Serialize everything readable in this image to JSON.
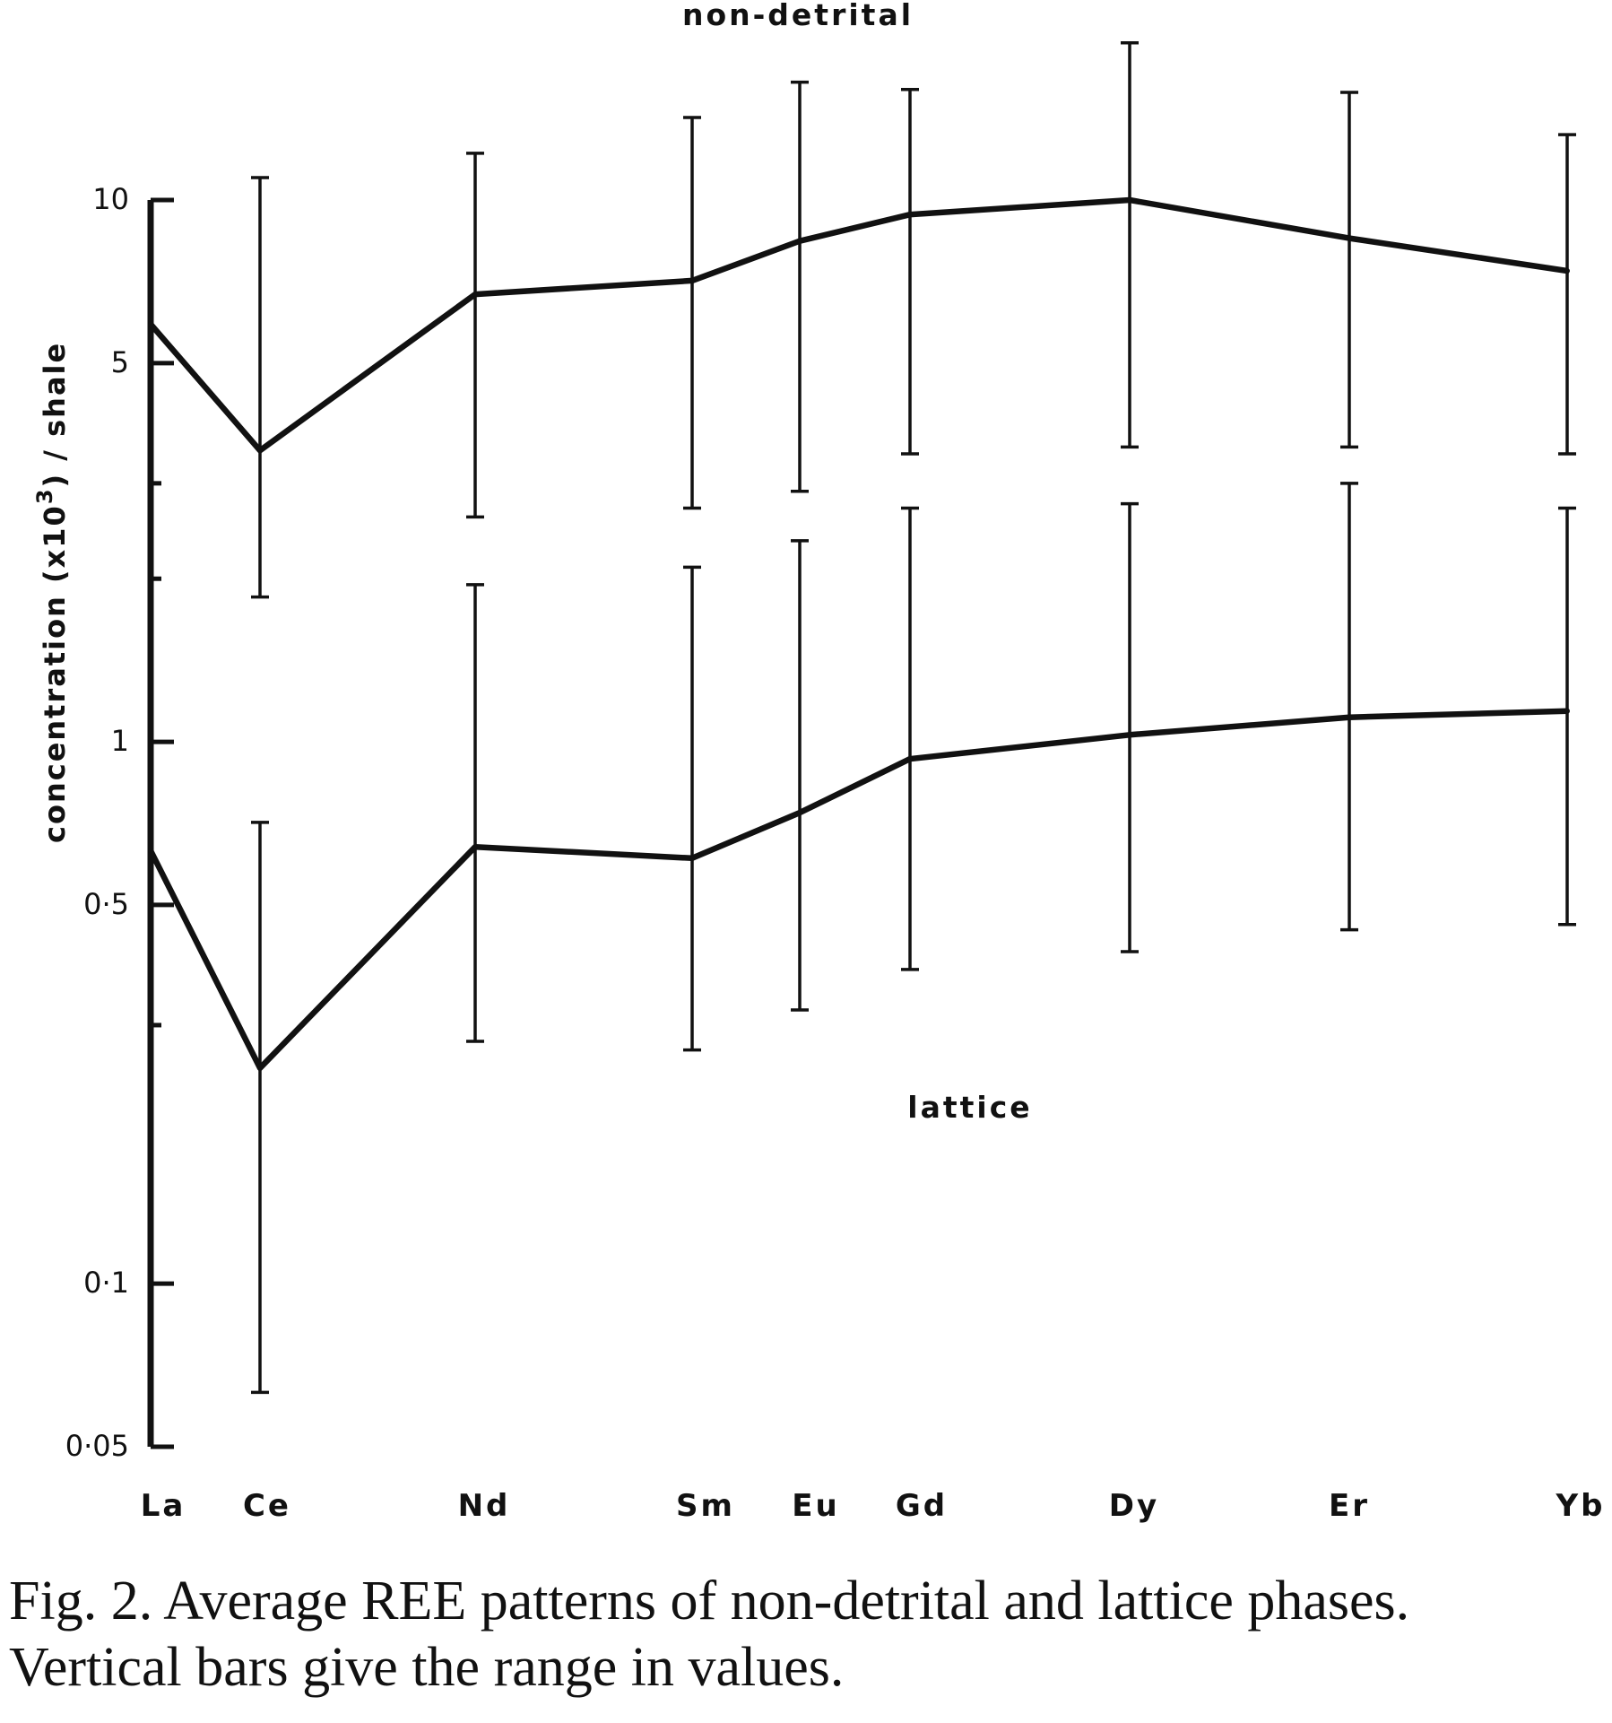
{
  "chart_data": {
    "type": "line",
    "title": "",
    "ylabel_main": "concentration (x10",
    "ylabel_sup": "3",
    "ylabel_tail": ") / shale",
    "xlabel": "",
    "yscale": "log",
    "ylim": [
      0.05,
      10
    ],
    "y_ticks_labeled": [
      {
        "value": 10,
        "label": "10"
      },
      {
        "value": 5,
        "label": "5"
      },
      {
        "value": 1,
        "label": "1"
      },
      {
        "value": 0.5,
        "label": "0·5"
      },
      {
        "value": 0.1,
        "label": "0·1"
      },
      {
        "value": 0.05,
        "label": "0·05"
      }
    ],
    "y_ticks_minor": [
      3,
      2,
      0.3
    ],
    "categories": [
      "La",
      "Ce",
      "Nd",
      "Sm",
      "Eu",
      "Gd",
      "Dy",
      "Er",
      "Yb"
    ],
    "series": [
      {
        "name": "non-detrital",
        "values": [
          5.9,
          3.45,
          6.7,
          7.1,
          8.4,
          9.4,
          10.0,
          8.5,
          7.4
        ],
        "range_low": [
          null,
          1.85,
          2.6,
          2.7,
          2.9,
          3.4,
          3.5,
          3.5,
          3.4
        ],
        "range_high": [
          null,
          11.0,
          12.2,
          14.2,
          16.5,
          16.0,
          19.5,
          15.8,
          13.2
        ]
      },
      {
        "name": "lattice",
        "values": [
          0.63,
          0.25,
          0.64,
          0.61,
          0.74,
          0.93,
          1.03,
          1.11,
          1.14
        ],
        "range_low": [
          null,
          0.063,
          0.28,
          0.27,
          0.32,
          0.38,
          0.41,
          0.45,
          0.46
        ],
        "range_high": [
          null,
          0.71,
          1.95,
          2.1,
          2.35,
          2.7,
          2.75,
          3.0,
          2.7
        ]
      }
    ],
    "annotations": [
      "non-detrital",
      "lattice"
    ],
    "grid": false,
    "legend": "none"
  },
  "caption": {
    "line1": "Fig. 2. Average REE patterns of non-detrital and lattice phases.",
    "line2": "Vertical bars give the range in values."
  }
}
